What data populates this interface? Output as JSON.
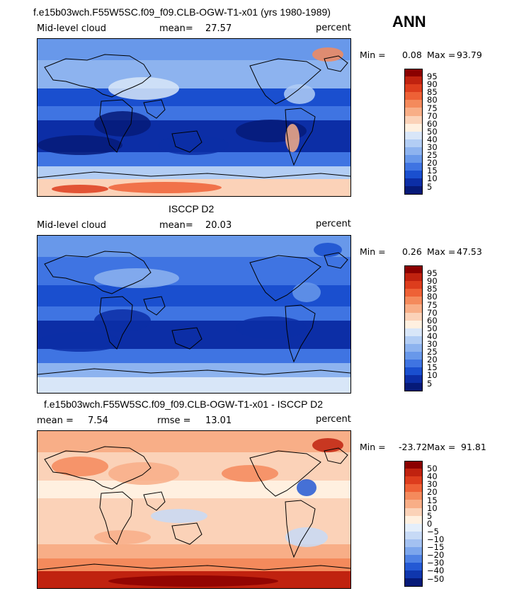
{
  "page_label": "ANN",
  "chart_data": [
    {
      "type": "heatmap",
      "title": "f.e15b03wch.F55W5SC.f09_f09.CLB-OGW-T1-x01 (yrs 1980-1989)",
      "variable": "Mid-level cloud",
      "units": "percent",
      "stat_label": "mean=",
      "stat_value": "27.57",
      "min_label": "Min =",
      "min_value": "0.08",
      "max_label": "Max =",
      "max_value": "93.79",
      "levels": [
        "95",
        "90",
        "85",
        "80",
        "75",
        "70",
        "60",
        "50",
        "40",
        "30",
        "25",
        "20",
        "15",
        "10",
        "5"
      ],
      "colors": [
        "#8b0000",
        "#c0220f",
        "#dd3d1d",
        "#ee6136",
        "#f48a5c",
        "#f8ae87",
        "#fbd2b8",
        "#fff0e0",
        "#d8e6f8",
        "#b2cdf4",
        "#8db3ef",
        "#6898ea",
        "#3f74e2",
        "#1a4fcf",
        "#0c2ea6",
        "#061a78"
      ]
    },
    {
      "type": "heatmap",
      "title": "ISCCP D2",
      "variable": "Mid-level cloud",
      "units": "percent",
      "stat_label": "mean=",
      "stat_value": "20.03",
      "min_label": "Min =",
      "min_value": "0.26",
      "max_label": "Max =",
      "max_value": "47.53",
      "levels": [
        "95",
        "90",
        "85",
        "80",
        "75",
        "70",
        "60",
        "50",
        "40",
        "30",
        "25",
        "20",
        "15",
        "10",
        "5"
      ],
      "colors": [
        "#8b0000",
        "#c0220f",
        "#dd3d1d",
        "#ee6136",
        "#f48a5c",
        "#f8ae87",
        "#fbd2b8",
        "#fff0e0",
        "#d8e6f8",
        "#b2cdf4",
        "#8db3ef",
        "#6898ea",
        "#3f74e2",
        "#1a4fcf",
        "#0c2ea6",
        "#061a78"
      ]
    },
    {
      "type": "heatmap",
      "title": "f.e15b03wch.F55W5SC.f09_f09.CLB-OGW-T1-x01 - ISCCP D2",
      "units": "percent",
      "stat_label": "mean =",
      "stat_value": "7.54",
      "rmse_label": "rmse =",
      "rmse_value": "13.01",
      "min_label": "Min =",
      "min_value": "-23.72",
      "max_label": "Max =",
      "max_value": "91.81",
      "levels": [
        "50",
        "40",
        "30",
        "20",
        "15",
        "10",
        "5",
        "0",
        "−5",
        "−10",
        "−15",
        "−20",
        "−30",
        "−40",
        "−50"
      ],
      "colors": [
        "#8b0000",
        "#c0220f",
        "#dd3d1d",
        "#ee6136",
        "#f48a5c",
        "#f8ae87",
        "#fbd2b8",
        "#fff0e0",
        "#e4eefa",
        "#c7daf6",
        "#a3c1f1",
        "#7ca6ec",
        "#4f82e4",
        "#2459d4",
        "#0f36ad",
        "#061a78"
      ]
    }
  ]
}
